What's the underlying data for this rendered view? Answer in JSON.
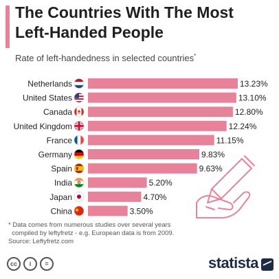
{
  "header": {
    "title_line1": "The Countries With The Most",
    "title_line2": "Left-Handed People",
    "subtitle": "Rate of left-handedness in selected countries",
    "subtitle_mark": "*"
  },
  "chart_data": {
    "type": "bar",
    "orientation": "horizontal",
    "title": "The Countries With The Most Left-Handed People",
    "subtitle": "Rate of left-handedness in selected countries*",
    "categories": [
      "Netherlands",
      "United States",
      "Canada",
      "United Kingdom",
      "France",
      "Germany",
      "Spain",
      "India",
      "Japan",
      "China"
    ],
    "values": [
      13.23,
      13.1,
      12.8,
      12.24,
      11.15,
      9.83,
      9.63,
      5.2,
      4.7,
      3.5
    ],
    "value_labels": [
      "13.23%",
      "13.10%",
      "12.80%",
      "12.24%",
      "11.15%",
      "9.83%",
      "9.63%",
      "5.20%",
      "4.70%",
      "3.50%"
    ],
    "flag_icons": [
      "netherlands-flag-icon",
      "united-states-flag-icon",
      "canada-flag-icon",
      "united-kingdom-flag-icon",
      "france-flag-icon",
      "germany-flag-icon",
      "spain-flag-icon",
      "india-flag-icon",
      "japan-flag-icon",
      "china-flag-icon"
    ],
    "bar_color": "#e8819a",
    "xlabel": "",
    "ylabel": "",
    "grid": false
  },
  "footnote": {
    "line1": "* Data comes from numerous studies over several years",
    "line2": "  compiled by leftyfretz - e.g. European data is from 2009.",
    "line3": "Source: Leftyfretz.com"
  },
  "footer": {
    "brand": "statista"
  },
  "colors": {
    "accent": "#e8819a",
    "brand": "#1f2a44"
  }
}
